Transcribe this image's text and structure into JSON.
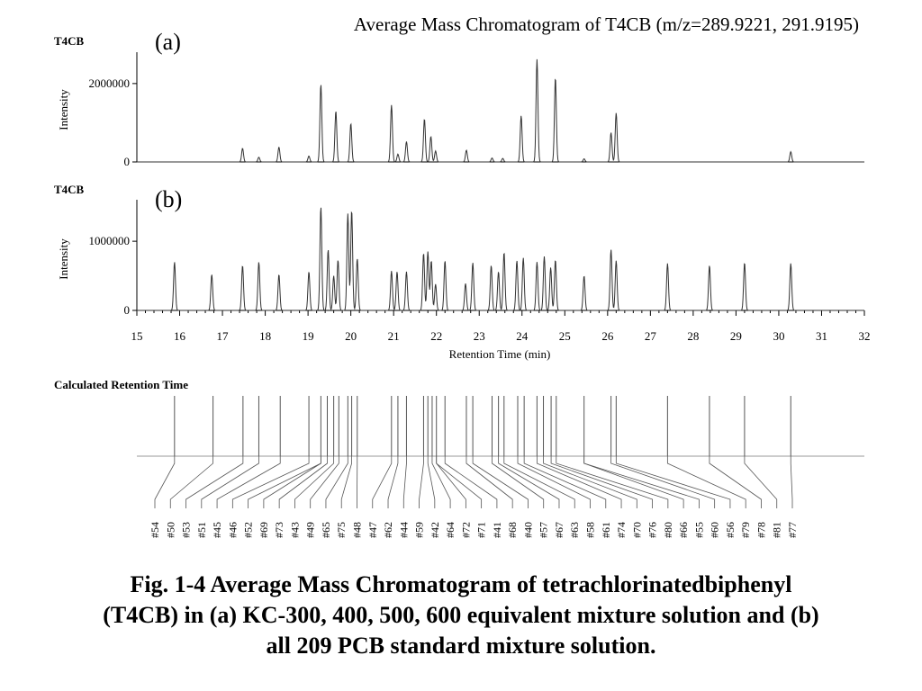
{
  "title": "Average Mass Chromatogram of T4CB (m/z=289.9221, 291.9195)",
  "chart_data": [
    {
      "type": "line",
      "panel": "(a)",
      "compound_label": "T4CB",
      "ylabel": "Intensity",
      "xlim": [
        15,
        32
      ],
      "ylim": [
        0,
        2800000
      ],
      "y_ticks": [
        0,
        2000000
      ],
      "y_tick_labels": [
        "0",
        "2000000"
      ],
      "peaks": [
        {
          "rt": 17.47,
          "height": 350000
        },
        {
          "rt": 17.85,
          "height": 120000
        },
        {
          "rt": 18.32,
          "height": 380000
        },
        {
          "rt": 19.02,
          "height": 150000
        },
        {
          "rt": 19.3,
          "height": 1980000
        },
        {
          "rt": 19.65,
          "height": 1300000
        },
        {
          "rt": 20.0,
          "height": 980000
        },
        {
          "rt": 20.95,
          "height": 1450000
        },
        {
          "rt": 21.1,
          "height": 200000
        },
        {
          "rt": 21.3,
          "height": 520000
        },
        {
          "rt": 21.72,
          "height": 1100000
        },
        {
          "rt": 21.87,
          "height": 650000
        },
        {
          "rt": 21.98,
          "height": 280000
        },
        {
          "rt": 22.7,
          "height": 300000
        },
        {
          "rt": 23.3,
          "height": 100000
        },
        {
          "rt": 23.55,
          "height": 90000
        },
        {
          "rt": 23.98,
          "height": 1180000
        },
        {
          "rt": 24.35,
          "height": 2620000
        },
        {
          "rt": 24.78,
          "height": 2150000
        },
        {
          "rt": 25.45,
          "height": 80000
        },
        {
          "rt": 26.08,
          "height": 750000
        },
        {
          "rt": 26.2,
          "height": 1250000
        },
        {
          "rt": 30.28,
          "height": 260000
        }
      ]
    },
    {
      "type": "line",
      "panel": "(b)",
      "compound_label": "T4CB",
      "ylabel": "Intensity",
      "xlabel": "Retention Time (min)",
      "xlim": [
        15,
        32
      ],
      "ylim": [
        0,
        1600000
      ],
      "y_ticks": [
        0,
        1000000
      ],
      "y_tick_labels": [
        "0",
        "1000000"
      ],
      "x_ticks": [
        15,
        16,
        17,
        18,
        19,
        20,
        21,
        22,
        23,
        24,
        25,
        26,
        27,
        28,
        29,
        30,
        31,
        32
      ],
      "x_tick_labels": [
        "15",
        "16",
        "17",
        "18",
        "19",
        "20",
        "21",
        "22",
        "23",
        "24",
        "25",
        "26",
        "27",
        "28",
        "29",
        "30",
        "31",
        "32"
      ],
      "peaks": [
        {
          "rt": 15.88,
          "height": 700000
        },
        {
          "rt": 16.75,
          "height": 520000
        },
        {
          "rt": 17.47,
          "height": 650000
        },
        {
          "rt": 17.85,
          "height": 700000
        },
        {
          "rt": 18.32,
          "height": 520000
        },
        {
          "rt": 19.02,
          "height": 560000
        },
        {
          "rt": 19.3,
          "height": 1500000
        },
        {
          "rt": 19.47,
          "height": 880000
        },
        {
          "rt": 19.6,
          "height": 500000
        },
        {
          "rt": 19.7,
          "height": 730000
        },
        {
          "rt": 19.93,
          "height": 1400000
        },
        {
          "rt": 20.02,
          "height": 1450000
        },
        {
          "rt": 20.15,
          "height": 750000
        },
        {
          "rt": 20.95,
          "height": 570000
        },
        {
          "rt": 21.08,
          "height": 560000
        },
        {
          "rt": 21.3,
          "height": 560000
        },
        {
          "rt": 21.7,
          "height": 830000
        },
        {
          "rt": 21.8,
          "height": 850000
        },
        {
          "rt": 21.88,
          "height": 720000
        },
        {
          "rt": 21.98,
          "height": 380000
        },
        {
          "rt": 22.2,
          "height": 720000
        },
        {
          "rt": 22.68,
          "height": 390000
        },
        {
          "rt": 22.85,
          "height": 690000
        },
        {
          "rt": 23.28,
          "height": 650000
        },
        {
          "rt": 23.45,
          "height": 560000
        },
        {
          "rt": 23.58,
          "height": 840000
        },
        {
          "rt": 23.88,
          "height": 720000
        },
        {
          "rt": 24.03,
          "height": 760000
        },
        {
          "rt": 24.35,
          "height": 700000
        },
        {
          "rt": 24.52,
          "height": 780000
        },
        {
          "rt": 24.67,
          "height": 620000
        },
        {
          "rt": 24.78,
          "height": 730000
        },
        {
          "rt": 25.45,
          "height": 500000
        },
        {
          "rt": 26.08,
          "height": 880000
        },
        {
          "rt": 26.2,
          "height": 720000
        },
        {
          "rt": 27.4,
          "height": 680000
        },
        {
          "rt": 28.38,
          "height": 650000
        },
        {
          "rt": 29.2,
          "height": 690000
        },
        {
          "rt": 30.28,
          "height": 680000
        }
      ]
    },
    {
      "type": "stick",
      "title": "Calculated Retention Time",
      "xlim": [
        15,
        32
      ],
      "sticks": [
        15.88,
        16.78,
        17.48,
        17.85,
        18.35,
        19.02,
        19.3,
        19.45,
        19.6,
        19.72,
        19.93,
        20.02,
        20.15,
        20.95,
        21.1,
        21.3,
        21.7,
        21.8,
        21.9,
        22.0,
        22.2,
        22.7,
        22.85,
        23.3,
        23.45,
        23.58,
        23.9,
        24.05,
        24.35,
        24.5,
        24.68,
        24.8,
        25.45,
        26.08,
        26.2,
        27.4,
        28.38,
        29.2,
        30.28
      ],
      "congener_labels": [
        "#54",
        "#50",
        "#53",
        "#51",
        "#45",
        "#46",
        "#52",
        "#69",
        "#73",
        "#43",
        "#49",
        "#65",
        "#75",
        "#48",
        "#47",
        "#62",
        "#44",
        "#59",
        "#42",
        "#64",
        "#72",
        "#71",
        "#41",
        "#68",
        "#40",
        "#57",
        "#67",
        "#63",
        "#58",
        "#61",
        "#74",
        "#70",
        "#76",
        "#80",
        "#66",
        "#55",
        "#60",
        "#56",
        "#79",
        "#78",
        "#81",
        "#77"
      ]
    }
  ],
  "caption": {
    "line1": "Fig. 1-4  Average Mass Chromatogram of tetrachlorinatedbiphenyl",
    "line2": "(T4CB) in (a) KC-300, 400, 500, 600 equivalent mixture solution and (b)",
    "line3": "all 209 PCB standard mixture solution."
  }
}
